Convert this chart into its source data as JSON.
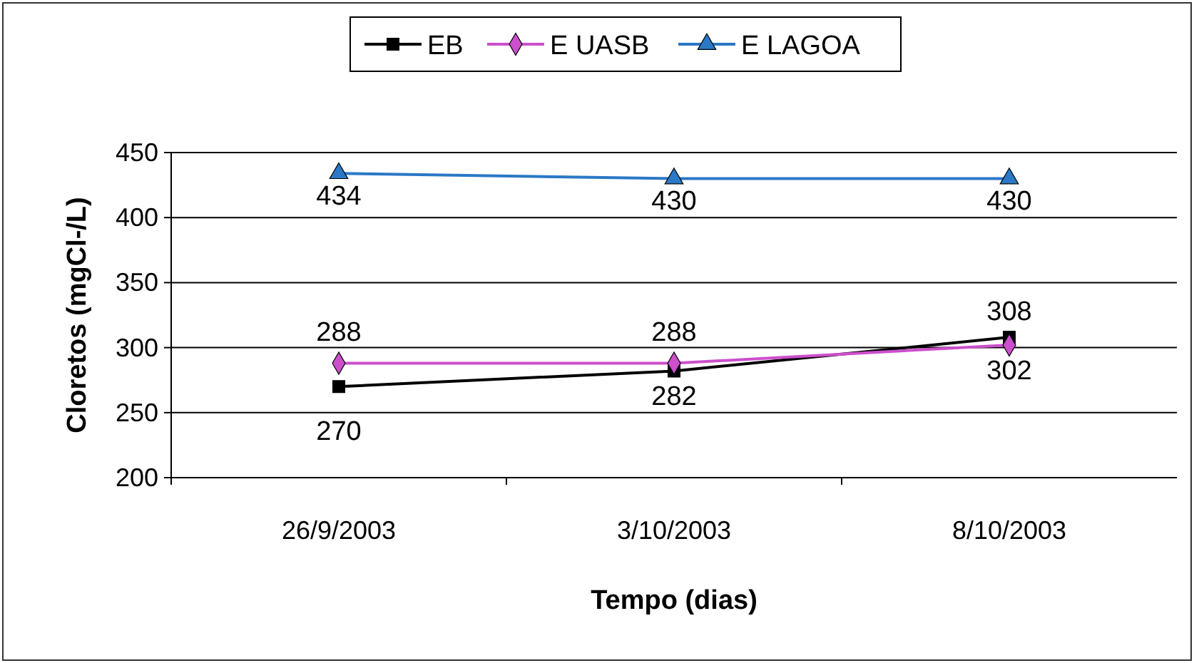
{
  "chart_data": {
    "type": "line",
    "xlabel": "Tempo (dias)",
    "ylabel": "Cloretos (mgCl-/L)",
    "categories": [
      "26/9/2003",
      "3/10/2003",
      "8/10/2003"
    ],
    "series": [
      {
        "name": "EB",
        "color": "#000000",
        "marker": "square",
        "values": [
          270,
          282,
          308
        ]
      },
      {
        "name": "E UASB",
        "color": "#cc4fcc",
        "marker": "diamond",
        "values": [
          288,
          288,
          302
        ]
      },
      {
        "name": "E LAGOA",
        "color": "#2a78c6",
        "marker": "triangle",
        "values": [
          434,
          430,
          430
        ]
      }
    ],
    "ylim": [
      200,
      450
    ],
    "yticks": [
      200,
      250,
      300,
      350,
      400,
      450
    ],
    "grid": "y",
    "legend": "top",
    "data_labels": true
  }
}
